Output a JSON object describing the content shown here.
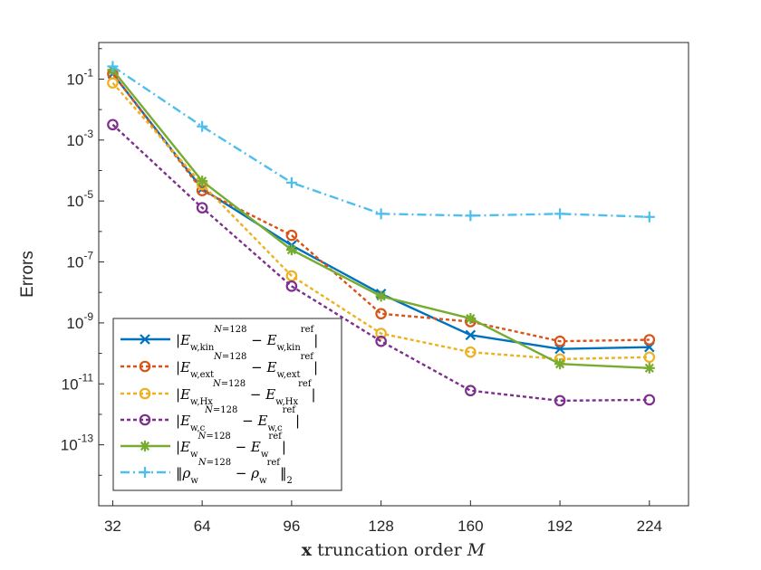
{
  "chart_data": {
    "type": "line",
    "title": "",
    "xlabel": "x truncation order M",
    "ylabel": "Errors",
    "x": [
      32,
      64,
      96,
      128,
      160,
      192,
      224
    ],
    "xticks": [
      "32",
      "64",
      "96",
      "128",
      "160",
      "192",
      "224"
    ],
    "xlim": [
      27,
      238
    ],
    "ylim_log10": [
      -15,
      0.2
    ],
    "yticks": [
      {
        "exp": -1,
        "label": "-1"
      },
      {
        "exp": -3,
        "label": "-3"
      },
      {
        "exp": -5,
        "label": "-5"
      },
      {
        "exp": -7,
        "label": "-7"
      },
      {
        "exp": -9,
        "label": "-9"
      },
      {
        "exp": -11,
        "label": "-11"
      },
      {
        "exp": -13,
        "label": "-13"
      }
    ],
    "ytick_base": "10",
    "grid": false,
    "legend_position": "bottom-left",
    "series": [
      {
        "key": "kin",
        "name": "|E_w,kin^(N=128) − E_w,kin^ref|",
        "color": "#0072BD",
        "dash": "solid",
        "marker": "x",
        "values": [
          0.15,
          2.5e-05,
          3.5e-07,
          9e-09,
          4e-10,
          1.4e-10,
          1.6e-10
        ]
      },
      {
        "key": "ext",
        "name": "|E_w,ext^(N=128) − E_w,ext^ref|",
        "color": "#D95319",
        "dash": "dot",
        "marker": "o",
        "values": [
          0.15,
          2.2e-05,
          7.5e-07,
          2e-09,
          1.1e-09,
          2.5e-10,
          2.8e-10
        ]
      },
      {
        "key": "hx",
        "name": "|E_w,Hx^(N=128) − E_w,Hx^ref|",
        "color": "#EDB120",
        "dash": "dot",
        "marker": "o",
        "values": [
          0.075,
          3.5e-05,
          3.5e-08,
          4.5e-10,
          1.1e-10,
          6.5e-11,
          7.5e-11
        ]
      },
      {
        "key": "c",
        "name": "|E_w,c^(N=128) − E_w,c^ref|",
        "color": "#7E2F8E",
        "dash": "dot",
        "marker": "o",
        "values": [
          0.0032,
          6e-06,
          1.6e-08,
          2.5e-10,
          6e-12,
          2.8e-12,
          3e-12
        ]
      },
      {
        "key": "tot",
        "name": "|E_w^(N=128) − E_w^ref|",
        "color": "#77AC30",
        "dash": "solid",
        "marker": "*",
        "values": [
          0.2,
          4.5e-05,
          2.5e-07,
          7.5e-09,
          1.4e-09,
          4.5e-11,
          3.3e-11
        ]
      },
      {
        "key": "rho",
        "name": "||ρ_w^(N=128) − ρ_w^ref||_2",
        "color": "#4DBEEE",
        "dash": "dashdot",
        "marker": "+",
        "values": [
          0.26,
          0.0028,
          4e-05,
          3.8e-06,
          3.3e-06,
          3.8e-06,
          3e-06
        ]
      }
    ]
  }
}
